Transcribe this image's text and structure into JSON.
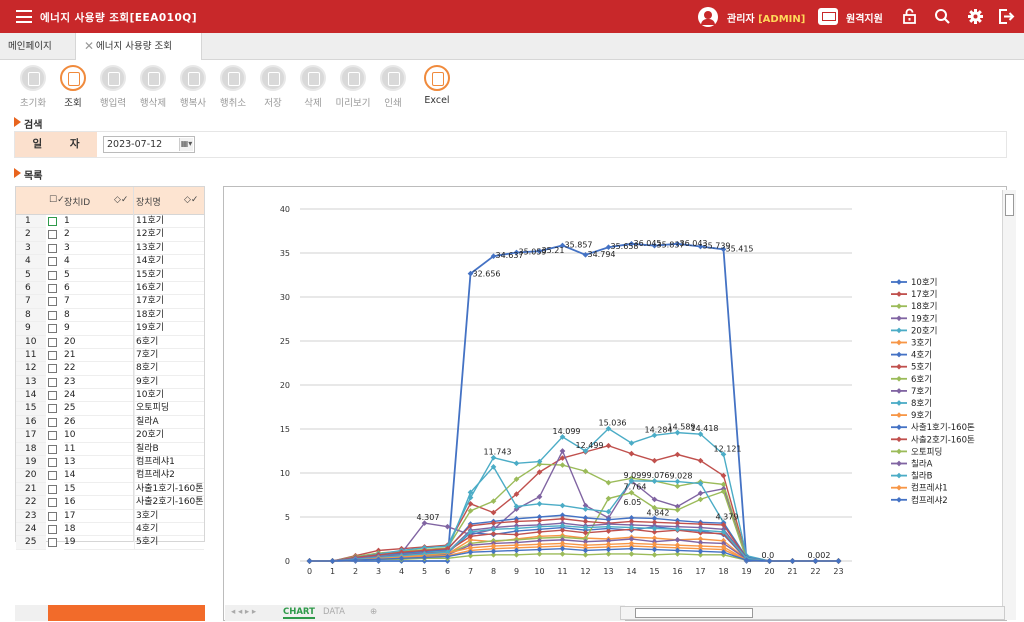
{
  "header": {
    "title": "에너지 사용량 조회[EEA010Q]",
    "user_name": "관리자",
    "user_role": "[ADMIN]",
    "remote_label": "원격지원",
    "icons": [
      "menu-icon",
      "user-icon",
      "monitor-icon",
      "lock-icon",
      "search-icon",
      "gear-icon",
      "logout-icon"
    ]
  },
  "tabs": [
    {
      "label": "메인페이지"
    },
    {
      "label": "에너지 사용량 조회"
    }
  ],
  "toolbar": {
    "buttons": [
      {
        "label": "초기화",
        "active": false
      },
      {
        "label": "조회",
        "active": true
      },
      {
        "label": "행입력",
        "active": false
      },
      {
        "label": "행삭제",
        "active": false
      },
      {
        "label": "행복사",
        "active": false
      },
      {
        "label": "행취소",
        "active": false
      },
      {
        "label": "저장",
        "active": false
      },
      {
        "label": "삭제",
        "active": false
      },
      {
        "label": "미리보기",
        "active": false
      },
      {
        "label": "인쇄",
        "active": false
      },
      {
        "label": "Excel",
        "active": true
      }
    ]
  },
  "search": {
    "section_label": "검색",
    "date_label": "일 자",
    "date_value": "2023-07-12"
  },
  "list": {
    "section_label": "목록",
    "columns": [
      "장치ID",
      "장치명"
    ],
    "rows": [
      {
        "no": "1",
        "id": "1",
        "name": "11호기"
      },
      {
        "no": "2",
        "id": "2",
        "name": "12호기"
      },
      {
        "no": "3",
        "id": "3",
        "name": "13호기"
      },
      {
        "no": "4",
        "id": "4",
        "name": "14호기"
      },
      {
        "no": "5",
        "id": "5",
        "name": "15호기"
      },
      {
        "no": "6",
        "id": "6",
        "name": "16호기"
      },
      {
        "no": "7",
        "id": "7",
        "name": "17호기"
      },
      {
        "no": "8",
        "id": "8",
        "name": "18호기"
      },
      {
        "no": "9",
        "id": "9",
        "name": "19호기"
      },
      {
        "no": "10",
        "id": "20",
        "name": "6호기"
      },
      {
        "no": "11",
        "id": "21",
        "name": "7호기"
      },
      {
        "no": "12",
        "id": "22",
        "name": "8호기"
      },
      {
        "no": "13",
        "id": "23",
        "name": "9호기"
      },
      {
        "no": "14",
        "id": "24",
        "name": "10호기"
      },
      {
        "no": "15",
        "id": "25",
        "name": "오토피딩"
      },
      {
        "no": "16",
        "id": "26",
        "name": "칠라A"
      },
      {
        "no": "17",
        "id": "10",
        "name": "20호기"
      },
      {
        "no": "18",
        "id": "11",
        "name": "칠라B"
      },
      {
        "no": "19",
        "id": "13",
        "name": "컴프레샤1"
      },
      {
        "no": "20",
        "id": "14",
        "name": "컴프레샤2"
      },
      {
        "no": "21",
        "id": "15",
        "name": "사출1호기-160톤"
      },
      {
        "no": "22",
        "id": "16",
        "name": "사출2호기-160톤"
      },
      {
        "no": "23",
        "id": "17",
        "name": "3호기"
      },
      {
        "no": "24",
        "id": "18",
        "name": "4호기"
      },
      {
        "no": "25",
        "id": "19",
        "name": "5호기"
      }
    ]
  },
  "bottom_tabs": [
    "CHART",
    "DATA"
  ],
  "chart_data": {
    "type": "line",
    "x": [
      0,
      1,
      2,
      3,
      4,
      5,
      6,
      7,
      8,
      9,
      10,
      11,
      12,
      13,
      14,
      15,
      16,
      17,
      18,
      19,
      20,
      21,
      22,
      23
    ],
    "ylim": [
      0,
      40
    ],
    "yticks": [
      0,
      5,
      10,
      15,
      20,
      25,
      30,
      35,
      40
    ],
    "grid": true,
    "legend_position": "right",
    "series": [
      {
        "name": "10호기",
        "color": "#4472c4",
        "values": [
          0,
          0,
          0,
          0,
          0,
          0,
          0,
          32.656,
          34.637,
          35.059,
          35.21,
          35.857,
          34.794,
          35.658,
          36.045,
          35.837,
          36.043,
          35.739,
          35.415,
          0,
          0,
          0,
          0,
          0
        ]
      },
      {
        "name": "17호기",
        "color": "#c0504d",
        "values": [
          0,
          0,
          0.6,
          1.2,
          1.4,
          1.6,
          1.8,
          6.5,
          5.5,
          7.6,
          10.1,
          11.7,
          12.4,
          13.1,
          12.2,
          11.4,
          12.1,
          11.4,
          9.7,
          0.5,
          0,
          0,
          0,
          0
        ]
      },
      {
        "name": "18호기",
        "color": "#9bbb59",
        "values": [
          0,
          0,
          0.5,
          0.9,
          1.1,
          1.3,
          1.5,
          5.7,
          6.8,
          9.3,
          11.0,
          10.9,
          10.2,
          8.9,
          9.4,
          9.1,
          8.5,
          9.0,
          8.7,
          0.4,
          0,
          0,
          0,
          0
        ]
      },
      {
        "name": "19호기",
        "color": "#8064a2",
        "values": [
          0,
          0,
          0.3,
          0.6,
          0.9,
          4.307,
          3.9,
          3.0,
          3.6,
          5.9,
          7.3,
          12.5,
          6.3,
          4.9,
          9.1,
          7.0,
          6.2,
          7.7,
          8.2,
          0.3,
          0,
          0,
          0,
          0
        ]
      },
      {
        "name": "20호기",
        "color": "#4bacc6",
        "values": [
          0,
          0,
          0.4,
          0.8,
          1.2,
          1.5,
          1.7,
          7.2,
          11.743,
          11.1,
          11.3,
          14.099,
          12.499,
          15.036,
          13.4,
          14.284,
          14.589,
          14.418,
          12.121,
          0.6,
          0,
          0,
          0,
          0
        ]
      },
      {
        "name": "3호기",
        "color": "#f79646",
        "values": [
          0,
          0,
          0.2,
          0.4,
          0.5,
          0.6,
          0.8,
          2.4,
          2.2,
          2.5,
          2.8,
          2.9,
          2.6,
          2.5,
          2.7,
          2.6,
          2.4,
          2.5,
          2.3,
          0.2,
          0,
          0,
          0,
          0
        ]
      },
      {
        "name": "4호기",
        "color": "#4472c4",
        "values": [
          0,
          0,
          0.2,
          0.4,
          0.6,
          0.7,
          0.9,
          3.2,
          3.0,
          3.4,
          3.6,
          3.8,
          3.5,
          3.7,
          3.5,
          3.9,
          3.6,
          3.4,
          3.0,
          0.2,
          0,
          0,
          0,
          0
        ]
      },
      {
        "name": "5호기",
        "color": "#c0504d",
        "values": [
          0,
          0,
          0.3,
          0.5,
          0.7,
          0.9,
          1.1,
          2.8,
          3.1,
          3.0,
          3.3,
          3.5,
          3.2,
          3.4,
          3.6,
          3.3,
          3.5,
          3.2,
          3.1,
          0.3,
          0,
          0,
          0,
          0
        ]
      },
      {
        "name": "6호기",
        "color": "#9bbb59",
        "values": [
          0,
          0,
          0.2,
          0.3,
          0.5,
          0.6,
          0.8,
          2.0,
          2.3,
          2.4,
          2.6,
          2.7,
          2.5,
          7.1,
          7.764,
          6.05,
          5.8,
          7.0,
          7.9,
          0.2,
          0,
          0,
          0,
          0
        ]
      },
      {
        "name": "7호기",
        "color": "#8064a2",
        "values": [
          0,
          0,
          0.1,
          0.3,
          0.4,
          0.5,
          0.7,
          1.8,
          2.0,
          2.1,
          2.3,
          2.4,
          2.2,
          2.3,
          2.5,
          2.2,
          2.4,
          2.1,
          2.0,
          0.2,
          0,
          0,
          0,
          0
        ]
      },
      {
        "name": "8호기",
        "color": "#4bacc6",
        "values": [
          0,
          0,
          0.3,
          0.6,
          0.8,
          1.0,
          1.2,
          7.8,
          10.7,
          6.2,
          6.5,
          6.3,
          5.9,
          5.6,
          9.099,
          9.076,
          9.028,
          8.8,
          4.379,
          0.4,
          0,
          0,
          0,
          0
        ]
      },
      {
        "name": "9호기",
        "color": "#f79646",
        "values": [
          0,
          0,
          0.2,
          0.4,
          0.5,
          0.7,
          0.9,
          1.5,
          1.7,
          1.8,
          1.9,
          2.0,
          1.8,
          1.9,
          2.0,
          1.9,
          1.8,
          1.7,
          1.6,
          0.1,
          0,
          0,
          0,
          0
        ]
      },
      {
        "name": "사출1호기-160톤",
        "color": "#4472c4",
        "values": [
          0,
          0,
          0.4,
          0.7,
          0.9,
          1.1,
          1.3,
          4.2,
          4.5,
          4.8,
          5.0,
          5.2,
          4.9,
          4.7,
          4.9,
          4.842,
          4.6,
          4.4,
          4.3,
          0.4,
          0,
          0,
          0,
          0
        ]
      },
      {
        "name": "사출2호기-160톤",
        "color": "#c0504d",
        "values": [
          0,
          0,
          0.4,
          0.7,
          1.0,
          1.2,
          1.4,
          4.0,
          4.3,
          4.5,
          4.6,
          4.8,
          4.5,
          4.3,
          4.5,
          4.4,
          4.3,
          4.2,
          4.1,
          0.3,
          0,
          0,
          0,
          0
        ]
      },
      {
        "name": "오토피딩",
        "color": "#9bbb59",
        "values": [
          0,
          0,
          0.1,
          0.2,
          0.2,
          0.3,
          0.3,
          0.6,
          0.7,
          0.7,
          0.8,
          0.8,
          0.7,
          0.8,
          0.8,
          0.7,
          0.8,
          0.7,
          0.7,
          0.1,
          0,
          0,
          0,
          0
        ]
      },
      {
        "name": "칠라A",
        "color": "#8064a2",
        "values": [
          0,
          0,
          0.3,
          0.5,
          0.7,
          0.9,
          1.0,
          3.5,
          3.8,
          4.0,
          4.1,
          4.3,
          4.0,
          4.2,
          4.1,
          4.0,
          3.9,
          3.8,
          3.6,
          0.3,
          0,
          0,
          0,
          0
        ]
      },
      {
        "name": "칠라B",
        "color": "#4bacc6",
        "values": [
          0,
          0,
          0.2,
          0.4,
          0.6,
          0.8,
          1.0,
          3.3,
          3.6,
          3.7,
          3.9,
          4.0,
          3.8,
          3.9,
          3.8,
          3.7,
          3.6,
          3.5,
          3.3,
          0.3,
          0,
          0,
          0,
          0
        ]
      },
      {
        "name": "컴프레샤1",
        "color": "#f79646",
        "values": [
          0,
          0,
          0.1,
          0.3,
          0.4,
          0.5,
          0.6,
          1.2,
          1.4,
          1.5,
          1.6,
          1.7,
          1.5,
          1.6,
          1.7,
          1.6,
          1.5,
          1.4,
          1.3,
          0.1,
          0,
          0,
          0,
          0
        ]
      },
      {
        "name": "컴프레샤2",
        "color": "#4472c4",
        "values": [
          0,
          0,
          0.1,
          0.2,
          0.3,
          0.4,
          0.5,
          1.0,
          1.1,
          1.2,
          1.3,
          1.4,
          1.2,
          1.3,
          1.4,
          1.3,
          1.2,
          1.1,
          1.0,
          0.1,
          0,
          0,
          0,
          0
        ]
      }
    ],
    "data_labels_10": [
      {
        "x": 7,
        "label": "32.656"
      },
      {
        "x": 8,
        "label": "34.637"
      },
      {
        "x": 9,
        "label": "35.059"
      },
      {
        "x": 10,
        "label": "35.21"
      },
      {
        "x": 11,
        "label": "35.857"
      },
      {
        "x": 12,
        "label": "34.794"
      },
      {
        "x": 13,
        "label": "35.658"
      },
      {
        "x": 14,
        "label": "36.045"
      },
      {
        "x": 15,
        "label": "35.837"
      },
      {
        "x": 16,
        "label": "36.043"
      },
      {
        "x": 17,
        "label": "35.739"
      },
      {
        "x": 18,
        "label": "35.415"
      }
    ],
    "data_labels_20": [
      {
        "x": 11,
        "label": "14.099"
      },
      {
        "x": 13,
        "label": "15.036"
      },
      {
        "x": 15,
        "label": "14.284"
      },
      {
        "x": 16,
        "label": "14.589"
      },
      {
        "x": 17,
        "label": "14.418"
      },
      {
        "x": 18,
        "label": "12.121"
      },
      {
        "x": 8,
        "label": "11.743"
      },
      {
        "x": 12,
        "label": "12.499"
      }
    ],
    "data_labels_misc": [
      {
        "x": 5,
        "y": 4.307,
        "label": "4.307"
      },
      {
        "x": 18,
        "y": 4.379,
        "label": "4.379"
      },
      {
        "x": 14,
        "y": 9.099,
        "label": "9.099"
      },
      {
        "x": 15,
        "y": 9.076,
        "label": "9.076"
      },
      {
        "x": 16,
        "y": 9.028,
        "label": "9.028"
      },
      {
        "x": 14,
        "y": 7.764,
        "label": "7.764"
      },
      {
        "x": 14,
        "y": 6.05,
        "label": "6.05"
      },
      {
        "x": 15,
        "y": 4.842,
        "label": "4.842"
      },
      {
        "x": 22,
        "y": 0.002,
        "label": "0.002"
      },
      {
        "x": 20,
        "y": 0,
        "label": "0.0"
      }
    ]
  }
}
